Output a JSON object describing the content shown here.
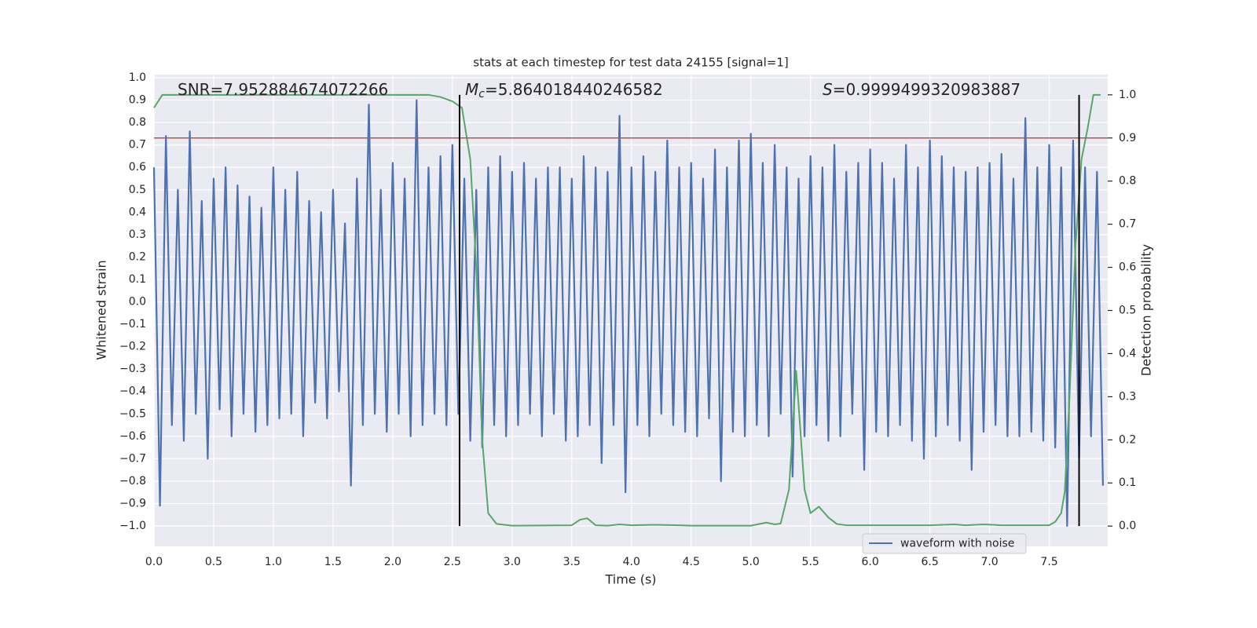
{
  "chart_data": {
    "type": "line",
    "title": "stats at each timestep for test data 24155 [signal=1]",
    "xlabel": "Time (s)",
    "ylabel": "Whitened strain",
    "y2label": "Detection probability",
    "annotations": [
      {
        "text": "SNR=7.952884674072266"
      },
      {
        "symbol": "M",
        "subscript": "c",
        "text": "=5.864018440246582"
      },
      {
        "symbol": "S",
        "text": "=0.9999499320983887"
      }
    ],
    "grid": true,
    "legend": "lower right",
    "xlim": [
      0,
      7.99
    ],
    "ylim": [
      -1.091,
      1.014
    ],
    "y2lim": [
      -0.047,
      1.047
    ],
    "xticks": [
      {
        "value": 0,
        "label": "0.0"
      },
      {
        "value": 0.5,
        "label": "0.5"
      },
      {
        "value": 1,
        "label": "1.0"
      },
      {
        "value": 1.5,
        "label": "1.5"
      },
      {
        "value": 2,
        "label": "2.0"
      },
      {
        "value": 2.5,
        "label": "2.5"
      },
      {
        "value": 3,
        "label": "3.0"
      },
      {
        "value": 3.5,
        "label": "3.5"
      },
      {
        "value": 4,
        "label": "4.0"
      },
      {
        "value": 4.5,
        "label": "4.5"
      },
      {
        "value": 5,
        "label": "5.0"
      },
      {
        "value": 5.5,
        "label": "5.5"
      },
      {
        "value": 6,
        "label": "6.0"
      },
      {
        "value": 6.5,
        "label": "6.5"
      },
      {
        "value": 7,
        "label": "7.0"
      },
      {
        "value": 7.5,
        "label": "7.5"
      }
    ],
    "yticks": [
      {
        "value": -1,
        "label": "−1.0"
      },
      {
        "value": -0.9,
        "label": "−0.9"
      },
      {
        "value": -0.8,
        "label": "−0.8"
      },
      {
        "value": -0.7,
        "label": "−0.7"
      },
      {
        "value": -0.6,
        "label": "−0.6"
      },
      {
        "value": -0.5,
        "label": "−0.5"
      },
      {
        "value": -0.4,
        "label": "−0.4"
      },
      {
        "value": -0.3,
        "label": "−0.3"
      },
      {
        "value": -0.2,
        "label": "−0.2"
      },
      {
        "value": -0.1,
        "label": "−0.1"
      },
      {
        "value": 0,
        "label": "0.0"
      },
      {
        "value": 0.1,
        "label": "0.1"
      },
      {
        "value": 0.2,
        "label": "0.2"
      },
      {
        "value": 0.3,
        "label": "0.3"
      },
      {
        "value": 0.4,
        "label": "0.4"
      },
      {
        "value": 0.5,
        "label": "0.5"
      },
      {
        "value": 0.6,
        "label": "0.6"
      },
      {
        "value": 0.7,
        "label": "0.7"
      },
      {
        "value": 0.8,
        "label": "0.8"
      },
      {
        "value": 0.9,
        "label": "0.9"
      },
      {
        "value": 1,
        "label": "1.0"
      }
    ],
    "y2ticks": [
      {
        "value": 0,
        "label": "0.0"
      },
      {
        "value": 0.1,
        "label": "0.1"
      },
      {
        "value": 0.2,
        "label": "0.2"
      },
      {
        "value": 0.3,
        "label": "0.3"
      },
      {
        "value": 0.4,
        "label": "0.4"
      },
      {
        "value": 0.5,
        "label": "0.5"
      },
      {
        "value": 0.6,
        "label": "0.6"
      },
      {
        "value": 0.7,
        "label": "0.7"
      },
      {
        "value": 0.8,
        "label": "0.8"
      },
      {
        "value": 0.9,
        "label": "0.9"
      },
      {
        "value": 1,
        "label": "1.0"
      }
    ],
    "threshold": {
      "value": 0.9,
      "axis": "y2",
      "color": "#c44e52"
    },
    "vlines": {
      "x": [
        2.56,
        7.75
      ],
      "span": [
        0,
        1
      ],
      "axis": "y2",
      "color": "#000000"
    },
    "series": [
      {
        "name": "waveform with noise",
        "color": "#4c72b0",
        "x": [
          0,
          0.05,
          0.1,
          0.15,
          0.2,
          0.25,
          0.3,
          0.35,
          0.4,
          0.45,
          0.5,
          0.55,
          0.6,
          0.65,
          0.7,
          0.75,
          0.8,
          0.85,
          0.9,
          0.95,
          1,
          1.05,
          1.1,
          1.15,
          1.2,
          1.25,
          1.3,
          1.35,
          1.4,
          1.45,
          1.5,
          1.55,
          1.6,
          1.65,
          1.7,
          1.75,
          1.8,
          1.85,
          1.9,
          1.95,
          2,
          2.05,
          2.1,
          2.15,
          2.2,
          2.25,
          2.3,
          2.35,
          2.4,
          2.45,
          2.5,
          2.55,
          2.6,
          2.65,
          2.7,
          2.75,
          2.8,
          2.85,
          2.9,
          2.95,
          3,
          3.05,
          3.1,
          3.15,
          3.2,
          3.25,
          3.3,
          3.35,
          3.4,
          3.45,
          3.5,
          3.55,
          3.6,
          3.65,
          3.7,
          3.75,
          3.8,
          3.85,
          3.9,
          3.95,
          4,
          4.05,
          4.1,
          4.15,
          4.2,
          4.25,
          4.3,
          4.35,
          4.4,
          4.45,
          4.5,
          4.55,
          4.6,
          4.65,
          4.7,
          4.75,
          4.8,
          4.85,
          4.9,
          4.95,
          5,
          5.05,
          5.1,
          5.15,
          5.2,
          5.25,
          5.3,
          5.35,
          5.4,
          5.45,
          5.5,
          5.55,
          5.6,
          5.65,
          5.7,
          5.75,
          5.8,
          5.85,
          5.9,
          5.95,
          6,
          6.05,
          6.1,
          6.15,
          6.2,
          6.25,
          6.3,
          6.35,
          6.4,
          6.45,
          6.5,
          6.55,
          6.6,
          6.65,
          6.7,
          6.75,
          6.8,
          6.85,
          6.9,
          6.95,
          7,
          7.05,
          7.1,
          7.15,
          7.2,
          7.25,
          7.3,
          7.35,
          7.4,
          7.45,
          7.5,
          7.55,
          7.6,
          7.65,
          7.7,
          7.75,
          7.8,
          7.85,
          7.9,
          7.95
        ],
        "values": [
          0.6,
          -0.91,
          0.74,
          -0.55,
          0.5,
          -0.62,
          0.76,
          -0.5,
          0.45,
          -0.7,
          0.55,
          -0.48,
          0.6,
          -0.6,
          0.52,
          -0.5,
          0.47,
          -0.58,
          0.42,
          -0.55,
          0.6,
          -0.52,
          0.5,
          -0.5,
          0.58,
          -0.6,
          0.45,
          -0.45,
          0.4,
          -0.52,
          0.5,
          -0.4,
          0.35,
          -0.82,
          0.55,
          -0.55,
          0.88,
          -0.5,
          0.5,
          -0.58,
          0.62,
          -0.5,
          0.55,
          -0.6,
          0.9,
          -0.55,
          0.6,
          -0.5,
          0.65,
          -0.55,
          0.7,
          -0.5,
          0.55,
          -0.62,
          0.5,
          -0.65,
          0.6,
          -0.55,
          0.65,
          -0.6,
          0.58,
          -0.55,
          0.62,
          -0.5,
          0.55,
          -0.6,
          0.6,
          -0.5,
          0.6,
          -0.62,
          0.55,
          -0.6,
          0.65,
          -0.55,
          0.6,
          -0.72,
          0.58,
          -0.55,
          0.83,
          -0.85,
          0.6,
          -0.55,
          0.65,
          -0.6,
          0.58,
          -0.5,
          0.72,
          -0.55,
          0.6,
          -0.58,
          0.62,
          -0.6,
          0.55,
          -0.52,
          0.68,
          -0.8,
          0.6,
          -0.58,
          0.72,
          -0.6,
          0.75,
          -0.55,
          0.62,
          -0.6,
          0.7,
          -0.5,
          0.6,
          -0.78,
          0.55,
          -0.6,
          0.65,
          -0.55,
          0.6,
          -0.62,
          0.7,
          -0.6,
          0.58,
          -0.5,
          0.62,
          -0.75,
          0.68,
          -0.58,
          0.62,
          -0.6,
          0.55,
          -0.55,
          0.7,
          -0.62,
          0.6,
          -0.7,
          0.72,
          -0.6,
          0.65,
          -0.55,
          0.6,
          -0.62,
          0.58,
          -0.75,
          0.6,
          -0.58,
          0.62,
          -0.55,
          0.66,
          -0.6,
          0.55,
          -0.6,
          0.82,
          -0.58,
          0.6,
          -0.62,
          0.7,
          -0.65,
          0.6,
          -1.0,
          0.72,
          -0.7,
          0.6,
          -0.6,
          0.58,
          -0.82
        ]
      },
      {
        "name": "Detection probability",
        "color": "#55a868",
        "axis": "y2",
        "x": [
          0,
          0.07,
          2.3,
          2.4,
          2.5,
          2.58,
          2.65,
          2.7,
          2.75,
          2.8,
          2.87,
          3,
          3.5,
          3.57,
          3.63,
          3.7,
          3.8,
          3.9,
          4,
          4.2,
          4.4,
          4.5,
          5,
          5.13,
          5.2,
          5.25,
          5.32,
          5.38,
          5.45,
          5.5,
          5.57,
          5.65,
          5.72,
          5.8,
          6.5,
          6.7,
          6.8,
          6.95,
          7.1,
          7.5,
          7.55,
          7.6,
          7.63,
          7.67,
          7.72,
          7.77,
          7.82,
          7.87,
          7.93
        ],
        "values": [
          0.97,
          1.0,
          1.0,
          0.995,
          0.985,
          0.97,
          0.85,
          0.6,
          0.2,
          0.03,
          0.005,
          0.001,
          0.002,
          0.015,
          0.018,
          0.002,
          0.001,
          0.004,
          0.002,
          0.003,
          0.002,
          0.001,
          0.001,
          0.008,
          0.004,
          0.006,
          0.085,
          0.36,
          0.085,
          0.03,
          0.045,
          0.02,
          0.005,
          0.002,
          0.002,
          0.004,
          0.002,
          0.004,
          0.002,
          0.002,
          0.01,
          0.03,
          0.08,
          0.3,
          0.65,
          0.85,
          0.92,
          1.0,
          1.0
        ]
      }
    ]
  }
}
